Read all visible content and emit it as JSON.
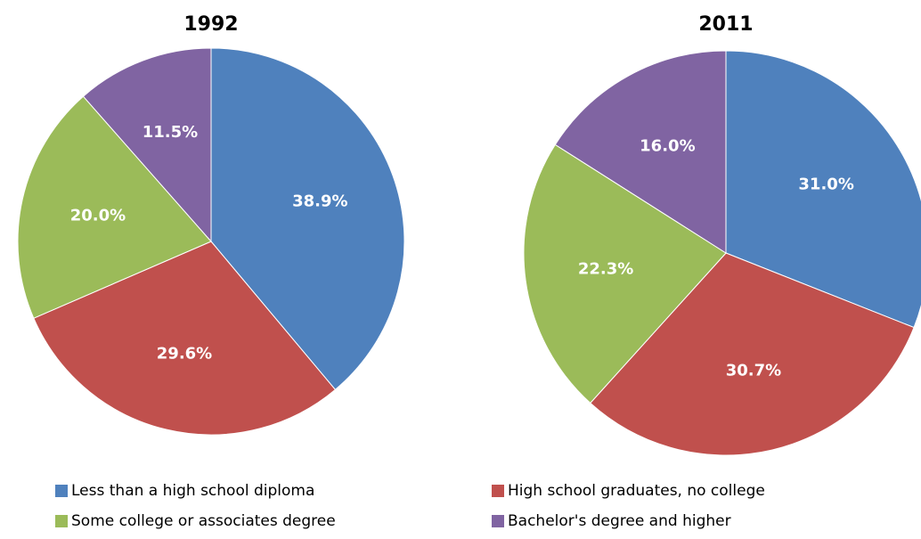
{
  "chart_data": [
    {
      "type": "pie",
      "title": "1992",
      "values": [
        38.9,
        29.6,
        20.0,
        11.5
      ],
      "value_labels": [
        "38.9%",
        "29.6%",
        "20.0%",
        "11.5%"
      ]
    },
    {
      "type": "pie",
      "title": "2011",
      "values": [
        31.0,
        30.7,
        22.3,
        16.0
      ],
      "value_labels": [
        "31.0%",
        "30.7%",
        "22.3%",
        "16.0%"
      ]
    }
  ],
  "legend": {
    "labels": [
      "Less than a high school diploma",
      "High school graduates, no college",
      "Some college or associates  degree",
      "Bachelor's degree and higher"
    ],
    "colors": [
      "#4f81bd",
      "#c0504d",
      "#9bbb59",
      "#8064a2"
    ]
  }
}
